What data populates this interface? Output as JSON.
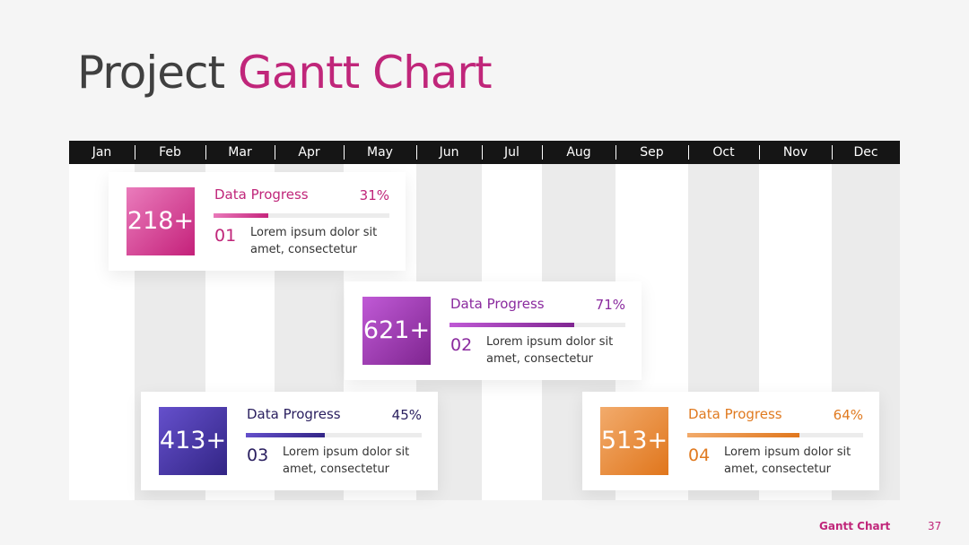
{
  "header": {
    "title_part1": "Project",
    "title_part2": "Gantt Chart"
  },
  "months": [
    "Jan",
    "Feb",
    "Mar",
    "Apr",
    "May",
    "Jun",
    "Jul",
    "Aug",
    "Sep",
    "Oct",
    "Nov",
    "Dec"
  ],
  "cards": [
    {
      "number": "218+",
      "label": "Data Progress",
      "percent": 31,
      "percent_label": "31%",
      "index": "01",
      "text": "Lorem ipsum dolor sit amet, consectetur"
    },
    {
      "number": "621+",
      "label": "Data Progress",
      "percent": 71,
      "percent_label": "71%",
      "index": "02",
      "text": "Lorem ipsum dolor sit amet, consectetur"
    },
    {
      "number": "413+",
      "label": "Data Progress",
      "percent": 45,
      "percent_label": "45%",
      "index": "03",
      "text": "Lorem ipsum dolor sit amet, consectetur"
    },
    {
      "number": "513+",
      "label": "Data Progress",
      "percent": 64,
      "percent_label": "64%",
      "index": "04",
      "text": "Lorem ipsum dolor sit amet, consectetur"
    }
  ],
  "footer": {
    "label": "Gantt Chart",
    "page": "37"
  }
}
